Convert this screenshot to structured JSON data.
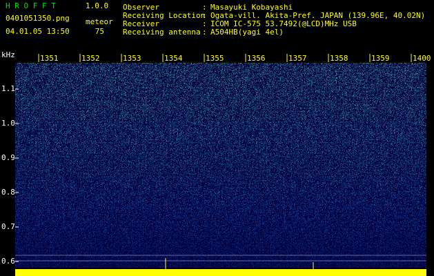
{
  "header": {
    "app": "H R O F F T",
    "version": "1.0.0",
    "file": "0401051350.png",
    "meteor_label": "meteor",
    "datetime": "04.01.05 13:50",
    "meteor_count": "75"
  },
  "info": {
    "separator": ":",
    "rows": [
      {
        "label": "Observer",
        "value": "Masayuki Kobayashi"
      },
      {
        "label": "Receiving Location",
        "value": "Ogata-vill. Akita-Pref. JAPAN (139.96E, 40.02N)"
      },
      {
        "label": "Receiver",
        "value": "ICOM IC-575 53.7492(@LCD)MHz USB"
      },
      {
        "label": "Receiving antenna",
        "value": "A504HB(yagi 4el)"
      }
    ]
  },
  "axis": {
    "y_unit": "kHz",
    "y_ticks": [
      "1.1",
      "1.0",
      "0.9",
      "0.8",
      "0.7",
      "0.6"
    ],
    "x_ticks": [
      "1351",
      "1352",
      "1353",
      "1354",
      "1355",
      "1356",
      "1357",
      "1358",
      "1359",
      "1400"
    ]
  }
}
